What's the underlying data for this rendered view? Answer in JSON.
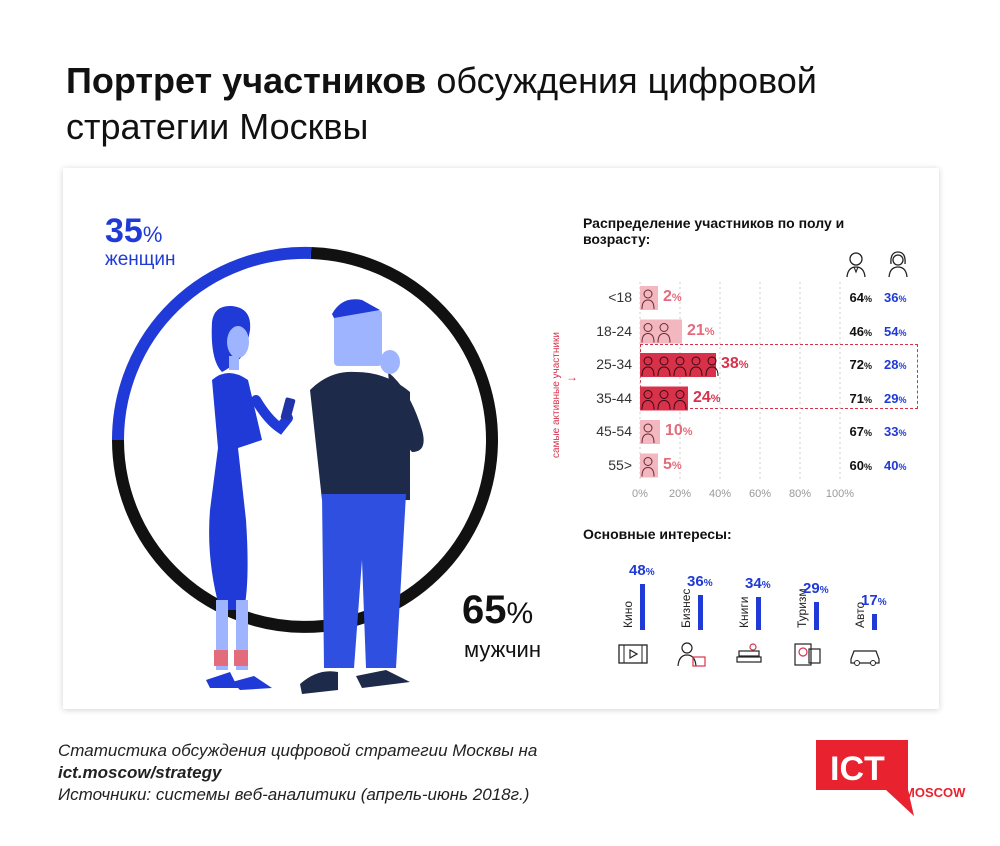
{
  "title": {
    "bold": "Портрет участников",
    "rest": "обсуждения цифровой стратегии Москвы"
  },
  "gender": {
    "women_value": "35",
    "women_unit": "%",
    "women_label": "женщин",
    "men_value": "65",
    "men_unit": "%",
    "men_label": "мужчин",
    "women_color": "#1f3ad6",
    "men_color": "#111111"
  },
  "age_chart": {
    "title": "Распределение участников по полу и возрасту:",
    "highlight_note": "самые активные участники",
    "male_icon": "man-icon",
    "female_icon": "woman-icon"
  },
  "interests": {
    "title": "Основные интересы:"
  },
  "chart_data": [
    {
      "type": "pie",
      "labels": [
        "женщин",
        "мужчин"
      ],
      "values": [
        35,
        65
      ],
      "colors": [
        "#1f3ad6",
        "#111111"
      ]
    },
    {
      "type": "bar",
      "orientation": "horizontal",
      "title": "Распределение участников по полу и возрасту:",
      "categories": [
        "<18",
        "18-24",
        "25-34",
        "35-44",
        "45-54",
        "55>"
      ],
      "values": [
        2,
        21,
        38,
        24,
        10,
        5
      ],
      "value_labels": [
        "2%",
        "21%",
        "38%",
        "24%",
        "10%",
        "5%"
      ],
      "male_share": [
        "64%",
        "46%",
        "72%",
        "71%",
        "67%",
        "60%"
      ],
      "female_share": [
        "36%",
        "54%",
        "28%",
        "29%",
        "33%",
        "40%"
      ],
      "xlim": [
        0,
        100
      ],
      "x_ticks": [
        "0%",
        "20%",
        "40%",
        "60%",
        "80%",
        "100%"
      ],
      "highlighted": [
        "25-34",
        "35-44"
      ]
    },
    {
      "type": "bar",
      "title": "Основные интересы:",
      "categories": [
        "Кино",
        "Бизнес",
        "Книги",
        "Туризм",
        "Авто"
      ],
      "values": [
        48,
        36,
        34,
        29,
        17
      ],
      "value_labels": [
        "48%",
        "36%",
        "34%",
        "29%",
        "17%"
      ],
      "icons": [
        "film-icon",
        "businessman-icon",
        "books-icon",
        "passport-icon",
        "car-icon"
      ]
    }
  ],
  "footer": {
    "line1": "Статистика обсуждения цифровой стратегии Москвы на",
    "line2": "ict.moscow/strategy",
    "line3": "Источники: системы веб-аналитики (апрель-июнь 2018г.)"
  },
  "logo": {
    "main": "ICT",
    "sub": "MOSCOW",
    "color": "#e8222e"
  }
}
